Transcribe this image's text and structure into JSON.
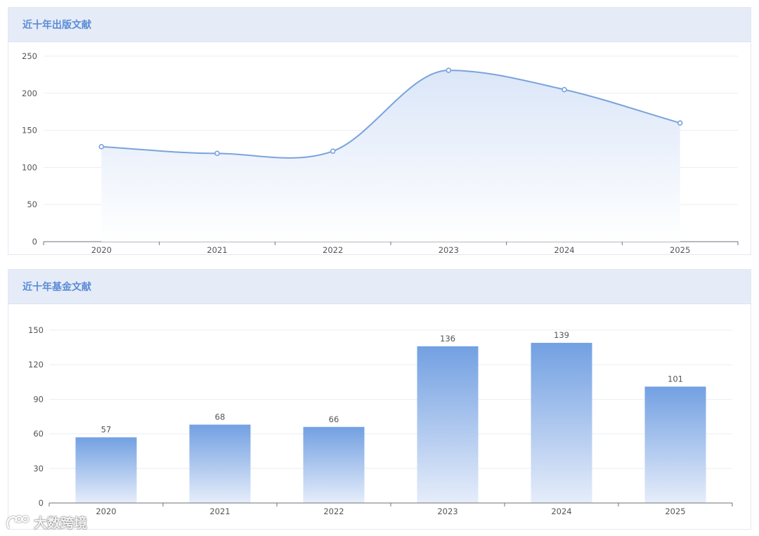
{
  "charts": {
    "publications": {
      "title": "近十年出版文献"
    },
    "funding": {
      "title": "近十年基金文献"
    }
  },
  "watermark": {
    "text": "大数跨境",
    "icon": "brand-logo-icon"
  },
  "chart_data": [
    {
      "type": "area",
      "title": "近十年出版文献",
      "x": [
        "2020",
        "2021",
        "2022",
        "2023",
        "2024",
        "2025"
      ],
      "values": [
        128,
        119,
        122,
        231,
        205,
        160
      ],
      "yticks": [
        0,
        50,
        100,
        150,
        200,
        250
      ],
      "ylim": [
        0,
        250
      ],
      "grid": true,
      "smooth": true,
      "colors": {
        "line": "#7aa3dc",
        "area_top": "#dbe6f8",
        "area_bottom": "#ffffff"
      }
    },
    {
      "type": "bar",
      "title": "近十年基金文献",
      "categories": [
        "2020",
        "2021",
        "2022",
        "2023",
        "2024",
        "2025"
      ],
      "values": [
        57,
        68,
        66,
        136,
        139,
        101
      ],
      "yticks": [
        0,
        30,
        60,
        90,
        120,
        150
      ],
      "ylim": [
        0,
        150
      ],
      "grid": true,
      "data_labels": true,
      "colors": {
        "bar_top": "#72a0e2",
        "bar_bottom": "#e6edfa"
      }
    }
  ]
}
